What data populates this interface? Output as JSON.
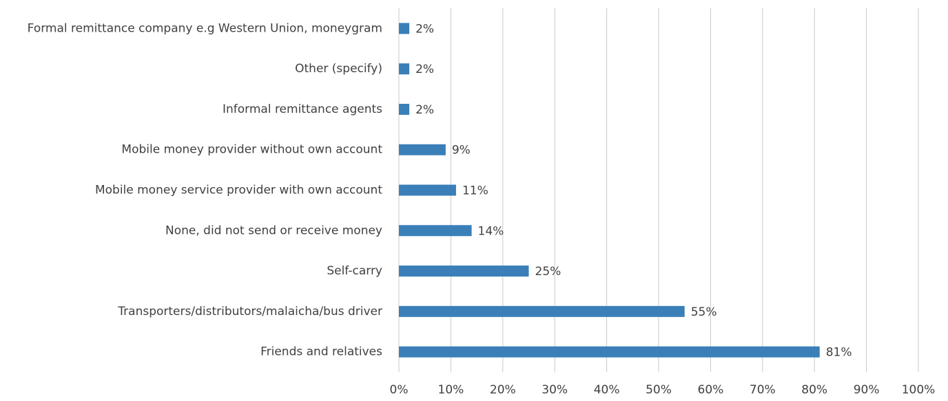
{
  "chart_data": {
    "type": "barh",
    "categories": [
      "Formal remittance company e.g Western Union, moneygram",
      "Other (specify)",
      "Informal remittance agents",
      "Mobile money provider without own account",
      "Mobile money service provider with own account",
      "None, did not send or receive money",
      "Self-carry",
      "Transporters/distributors/malaicha/bus driver",
      "Friends and relatives"
    ],
    "values": [
      2,
      2,
      2,
      9,
      11,
      14,
      25,
      55,
      81
    ],
    "value_labels": [
      "2%",
      "2%",
      "2%",
      "9%",
      "11%",
      "14%",
      "25%",
      "55%",
      "81%"
    ],
    "color": "#3a7fb8",
    "xlim": [
      0,
      100
    ],
    "xticks": [
      {
        "value": 0,
        "label": "0%"
      },
      {
        "value": 10,
        "label": "10%"
      },
      {
        "value": 20,
        "label": "20%"
      },
      {
        "value": 30,
        "label": "30%"
      },
      {
        "value": 40,
        "label": "40%"
      },
      {
        "value": 50,
        "label": "50%"
      },
      {
        "value": 60,
        "label": "60%"
      },
      {
        "value": 70,
        "label": "70%"
      },
      {
        "value": 80,
        "label": "80%"
      },
      {
        "value": 90,
        "label": "90%"
      },
      {
        "value": 100,
        "label": "100%"
      }
    ],
    "grid": true
  }
}
